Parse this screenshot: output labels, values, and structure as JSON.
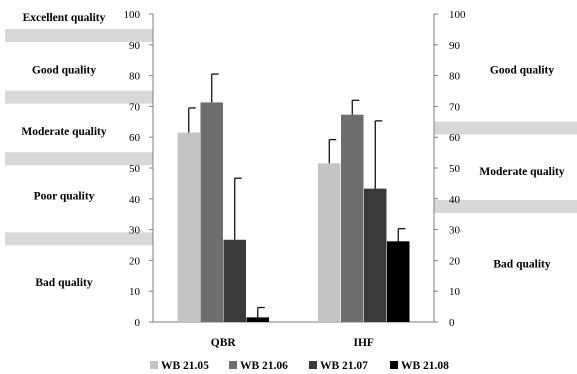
{
  "chart_data": {
    "type": "bar",
    "categories": [
      "QBR",
      "IHF"
    ],
    "series": [
      {
        "name": "WB 21.05",
        "color": "#c4c4c4",
        "values": [
          61.5,
          51.5
        ],
        "error_upper": [
          69.5,
          59.2
        ]
      },
      {
        "name": "WB 21.06",
        "color": "#6e6e6e",
        "values": [
          71.3,
          67.3
        ],
        "error_upper": [
          80.5,
          72.0
        ]
      },
      {
        "name": "WB 21.07",
        "color": "#3a3a3a",
        "values": [
          26.7,
          43.3
        ],
        "error_upper": [
          46.7,
          65.3
        ]
      },
      {
        "name": "WB 21.08",
        "color": "#000000",
        "values": [
          1.5,
          26.2
        ],
        "error_upper": [
          4.7,
          30.3
        ]
      }
    ],
    "ylim": [
      0,
      100
    ],
    "yticks": [
      "0",
      "10",
      "20",
      "30",
      "40",
      "50",
      "60",
      "70",
      "80",
      "90",
      "100"
    ],
    "legend_position": "bottom",
    "grid": false,
    "left_scale": {
      "labels": [
        "Excellent quality",
        "Good quality",
        "Moderate quality",
        "Poor quality",
        "Bad quality"
      ],
      "label_values": [
        99,
        82,
        62,
        41,
        13
      ],
      "band_values": [
        93,
        73,
        53,
        27
      ]
    },
    "right_scale": {
      "labels": [
        "Good quality",
        "Moderate quality",
        "Bad quality"
      ],
      "label_values": [
        82,
        49,
        19
      ],
      "band_values": [
        63,
        37.5
      ]
    }
  }
}
